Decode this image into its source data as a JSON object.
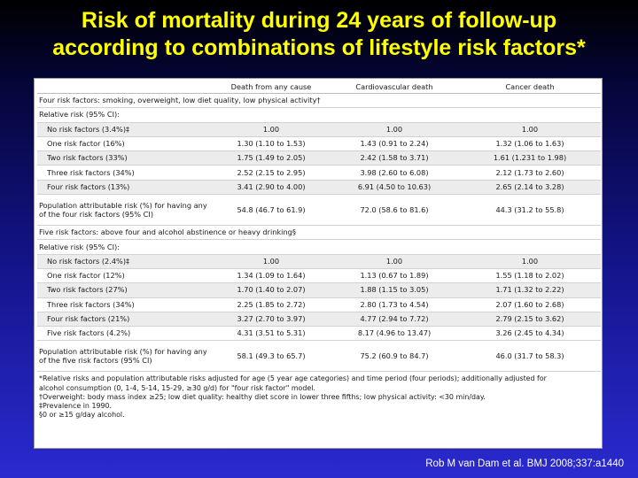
{
  "slide": {
    "title_line1": "Risk of mortality during 24 years of follow-up",
    "title_line2": "according to combinations of lifestyle risk factors*",
    "citation": "Rob M van Dam et al. BMJ 2008;337:a1440",
    "colors": {
      "title": "#ffff00",
      "background_top": "#000000",
      "background_bottom": "#2a2ad0"
    }
  },
  "table": {
    "headers": [
      "",
      "Death from any cause",
      "Cardiovascular death",
      "Cancer death"
    ],
    "section1": {
      "heading": "Four risk factors: smoking, overweight, low diet quality, low physical activity†",
      "relative_risk_label": "Relative risk (95% CI):",
      "rows": [
        [
          "No risk factors (3.4%)‡",
          "1.00",
          "1.00",
          "1.00"
        ],
        [
          "One risk factor (16%)",
          "1.30 (1.10 to 1.53)",
          "1.43 (0.91 to 2.24)",
          "1.32 (1.06 to 1.63)"
        ],
        [
          "Two risk factors (33%)",
          "1.75 (1.49 to 2.05)",
          "2.42 (1.58 to 3.71)",
          "1.61 (1.231 to 1.98)"
        ],
        [
          "Three risk factors (34%)",
          "2.52 (2.15 to 2.95)",
          "3.98 (2.60 to 6.08)",
          "2.12 (1.73 to 2.60)"
        ],
        [
          "Four risk factors (13%)",
          "3.41 (2.90 to 4.00)",
          "6.91 (4.50 to 10.63)",
          "2.65 (2.14 to 3.28)"
        ]
      ],
      "par_row": [
        "Population attributable risk (%) for having any of the four risk factors (95% CI)",
        "54.8 (46.7 to 61.9)",
        "72.0 (58.6 to 81.6)",
        "44.3 (31.2 to 55.8)"
      ]
    },
    "section2": {
      "heading": "Five risk factors: above four and alcohol abstinence or heavy drinking§",
      "relative_risk_label": "Relative risk (95% CI):",
      "rows": [
        [
          "No risk factors (2.4%)‡",
          "1.00",
          "1.00",
          "1.00"
        ],
        [
          "One risk factor (12%)",
          "1.34 (1.09 to 1.64)",
          "1.13 (0.67 to 1.89)",
          "1.55 (1.18 to 2.02)"
        ],
        [
          "Two risk factors (27%)",
          "1.70 (1.40 to 2.07)",
          "1.88 (1.15 to 3.05)",
          "1.71 (1.32 to 2.22)"
        ],
        [
          "Three risk factors (34%)",
          "2.25 (1.85 to 2.72)",
          "2.80 (1.73 to 4.54)",
          "2.07 (1.60 to 2.68)"
        ],
        [
          "Four risk factors (21%)",
          "3.27 (2.70 to 3.97)",
          "4.77 (2.94 to 7.72)",
          "2.79 (2.15 to 3.62)"
        ],
        [
          "Five risk factors (4.2%)",
          "4.31 (3.51 to 5.31)",
          "8.17 (4.96 to 13.47)",
          "3.26 (2.45 to 4.34)"
        ]
      ],
      "par_row": [
        "Population attributable risk (%) for having any of the five risk factors (95% CI)",
        "58.1 (49.3 to 65.7)",
        "75.2 (60.9 to 84.7)",
        "46.0 (31.7 to 58.3)"
      ]
    },
    "footnotes": [
      "*Relative risks and population attributable risks adjusted for age (5 year age categories) and time period (four periods); additionally adjusted for",
      "alcohol consumption (0, 1-4, 5-14, 15-29, ≥30 g/d) for \"four risk factor\" model.",
      "†Overweight: body mass index ≥25; low diet quality: healthy diet score in lower three fifths; low physical activity: <30 min/day.",
      "‡Prevalence in 1990.",
      "§0 or ≥15 g/day alcohol."
    ]
  }
}
